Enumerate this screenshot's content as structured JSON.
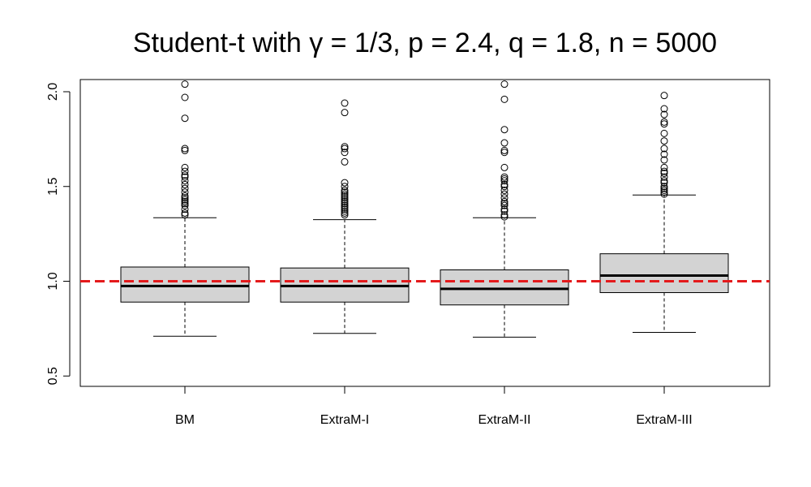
{
  "chart_data": {
    "type": "box",
    "title": "Student-t with γ = 1/3, p = 2.4, q = 1.8, n = 5000",
    "categories": [
      "BM",
      "ExtraM-I",
      "ExtraM-II",
      "ExtraM-III"
    ],
    "ylim": [
      0.45,
      2.05
    ],
    "yticks": [
      "0.5",
      "1.0",
      "1.5",
      "2.0"
    ],
    "reference_line": {
      "y": 1.0,
      "style": "dashed",
      "color": "#e41a1c"
    },
    "box_fill": "#d3d3d3",
    "grid": false,
    "boxes": [
      {
        "name": "BM",
        "whisker_low": 0.71,
        "q1": 0.89,
        "median": 0.975,
        "q3": 1.075,
        "whisker_high": 1.335,
        "outliers": [
          2.04,
          1.97,
          1.86,
          1.7,
          1.69,
          1.6,
          1.58,
          1.56,
          1.55,
          1.53,
          1.51,
          1.49,
          1.47,
          1.45,
          1.44,
          1.43,
          1.42,
          1.41,
          1.4,
          1.38,
          1.36,
          1.35
        ]
      },
      {
        "name": "ExtraM-I",
        "whisker_low": 0.725,
        "q1": 0.89,
        "median": 0.975,
        "q3": 1.07,
        "whisker_high": 1.325,
        "outliers": [
          1.94,
          1.89,
          1.71,
          1.7,
          1.68,
          1.63,
          1.52,
          1.5,
          1.48,
          1.47,
          1.46,
          1.45,
          1.44,
          1.43,
          1.42,
          1.41,
          1.4,
          1.39,
          1.38,
          1.37,
          1.36,
          1.35
        ]
      },
      {
        "name": "ExtraM-II",
        "whisker_low": 0.705,
        "q1": 0.875,
        "median": 0.96,
        "q3": 1.06,
        "whisker_high": 1.335,
        "outliers": [
          2.04,
          1.96,
          1.8,
          1.73,
          1.69,
          1.68,
          1.6,
          1.55,
          1.54,
          1.53,
          1.51,
          1.5,
          1.48,
          1.46,
          1.44,
          1.42,
          1.41,
          1.4,
          1.38,
          1.37,
          1.35,
          1.34
        ]
      },
      {
        "name": "ExtraM-III",
        "whisker_low": 0.73,
        "q1": 0.94,
        "median": 1.03,
        "q3": 1.145,
        "whisker_high": 1.455,
        "outliers": [
          1.98,
          1.91,
          1.88,
          1.84,
          1.83,
          1.78,
          1.74,
          1.7,
          1.67,
          1.64,
          1.6,
          1.58,
          1.57,
          1.55,
          1.53,
          1.52,
          1.5,
          1.49,
          1.48,
          1.47,
          1.46
        ]
      }
    ]
  }
}
